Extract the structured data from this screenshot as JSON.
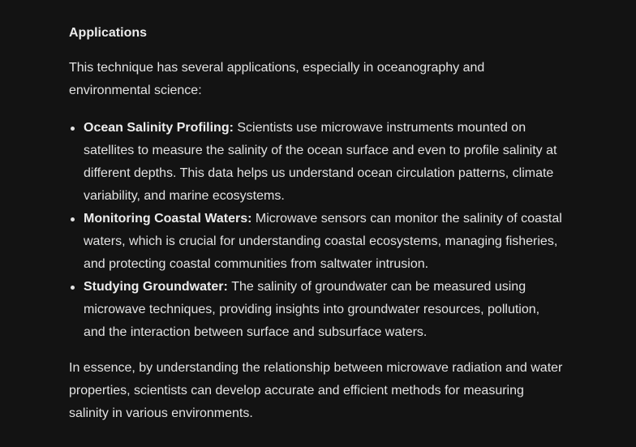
{
  "section": {
    "heading": "Applications",
    "intro": "This technique has several applications, especially in oceanography and environmental science:"
  },
  "bullets": [
    {
      "term": "Ocean Salinity Profiling:",
      "text": "Scientists use microwave instruments mounted on satellites to measure the salinity of the ocean surface and even to profile salinity at different depths. This data helps us understand ocean circulation patterns, climate variability, and marine ecosystems."
    },
    {
      "term": "Monitoring Coastal Waters:",
      "text": "Microwave sensors can monitor the salinity of coastal waters, which is crucial for understanding coastal ecosystems, managing fisheries, and protecting coastal communities from saltwater intrusion."
    },
    {
      "term": "Studying Groundwater:",
      "text": "The salinity of groundwater can be measured using microwave techniques, providing insights into groundwater resources, pollution, and the interaction between surface and subsurface waters."
    }
  ],
  "conclusion": "In essence, by understanding the relationship between microwave radiation and water properties, scientists can develop accurate and efficient methods for measuring salinity in various environments."
}
